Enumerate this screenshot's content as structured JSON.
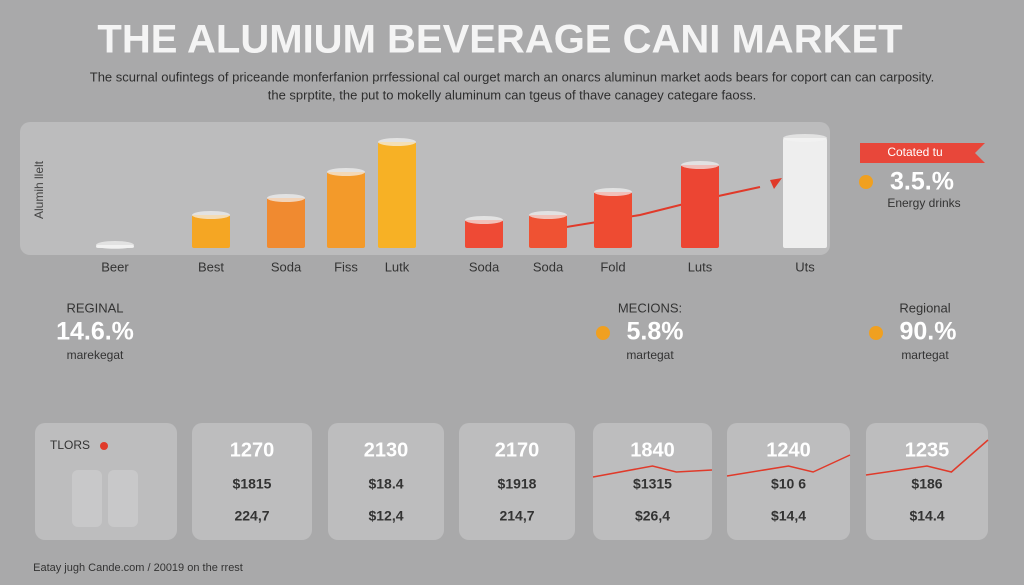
{
  "header": {
    "title": "THE ALUMIUM BEVERAGE CANI MARKET",
    "subtitle": [
      "The scurnal oufintegs of priceande monferfanion prrfessional cal ourget march an onarcs aluminun market aods bears for coport can can carposity.",
      "the sprptite, the put to mokelly aluminum can tgeus of thave canagey categare faoss."
    ]
  },
  "chart_data": {
    "type": "bar",
    "y_label": "Alumih llelt",
    "categories": [
      "Beer",
      "Best",
      "Soda",
      "Fiss",
      "Lutk",
      "Soda",
      "Soda",
      "Fold",
      "Luts",
      "Uts"
    ],
    "values": [
      3,
      33,
      50,
      76,
      106,
      28,
      33,
      56,
      83,
      110
    ],
    "colors": [
      "#eeeeee",
      "#f5a623",
      "#f08a30",
      "#f39a2a",
      "#f7b125",
      "#ee4a35",
      "#ef5233",
      "#ee4b32",
      "#ec4533",
      "#eeeeee"
    ],
    "ylim": [
      0,
      120
    ]
  },
  "callout": {
    "tag": "Cotated tu",
    "value": "3.5.%",
    "label": "Energy drinks"
  },
  "stats": [
    {
      "label": "REGINAL",
      "value": "14.6.%",
      "caption": "marekegat"
    },
    {
      "label": "MECIONS:",
      "value": "5.8%",
      "caption": "martegat"
    },
    {
      "label": "Regional",
      "value": "90.%",
      "caption": "martegat"
    }
  ],
  "cards": {
    "label": "TLORS",
    "items": [
      [
        "1270",
        "$1815",
        "224,7"
      ],
      [
        "2130",
        "$18.4",
        "$12,4"
      ],
      [
        "2170",
        "$1918",
        "214,7"
      ],
      [
        "1840",
        "$1315",
        "$26,4"
      ],
      [
        "1240",
        "$10 6",
        "$14,4"
      ],
      [
        "1235",
        "$186",
        "$14.4"
      ]
    ]
  },
  "footer": "Eatay jugh Cande.com / 20019 on the rrest"
}
